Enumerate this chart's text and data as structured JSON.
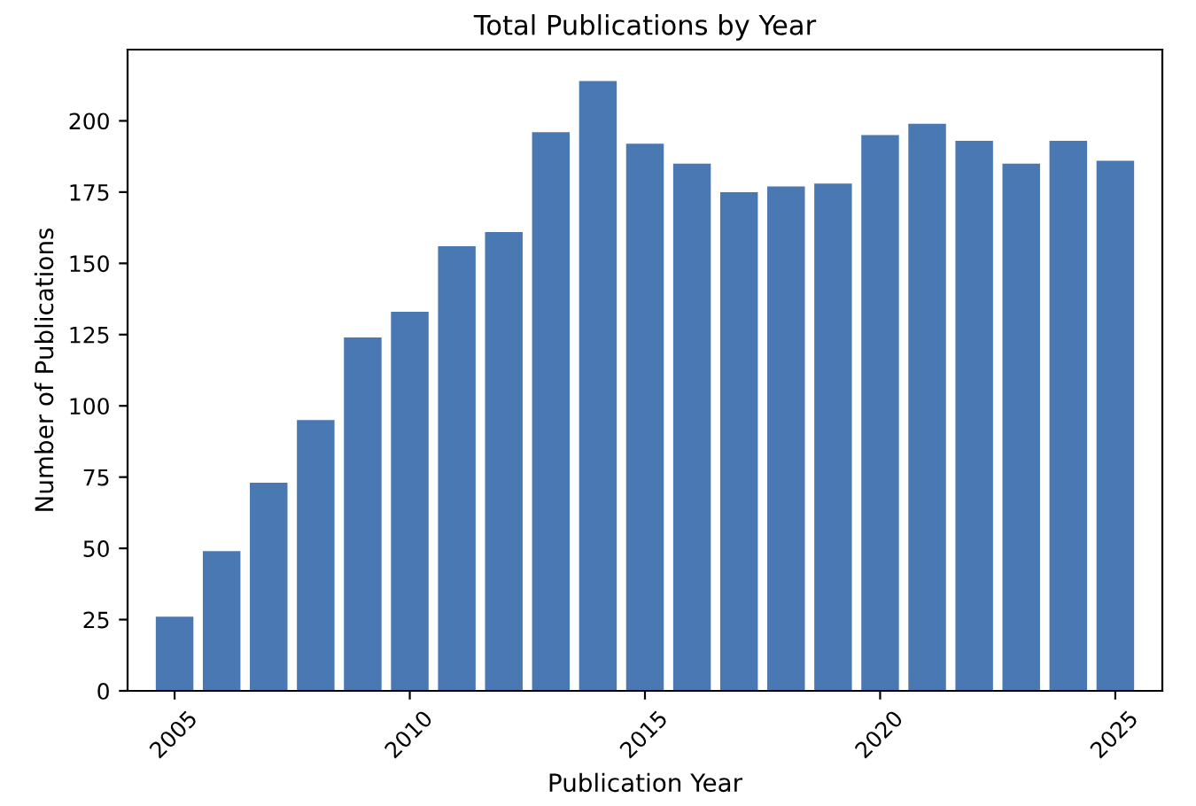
{
  "chart_data": {
    "type": "bar",
    "title": "Total Publications by Year",
    "xlabel": "Publication Year",
    "ylabel": "Number of Publications",
    "x": [
      2005,
      2006,
      2007,
      2008,
      2009,
      2010,
      2011,
      2012,
      2013,
      2014,
      2015,
      2016,
      2017,
      2018,
      2019,
      2020,
      2021,
      2022,
      2023,
      2024,
      2025
    ],
    "values": [
      26,
      49,
      73,
      95,
      124,
      133,
      156,
      161,
      196,
      214,
      192,
      185,
      175,
      177,
      178,
      195,
      199,
      193,
      185,
      193,
      186
    ],
    "color": "#4a78b2",
    "xlim": [
      2004,
      2026
    ],
    "xticks": [
      2005,
      2010,
      2015,
      2020,
      2025
    ],
    "ylim": [
      0,
      225
    ],
    "yticks": [
      0,
      25,
      50,
      75,
      100,
      125,
      150,
      175,
      200
    ]
  }
}
